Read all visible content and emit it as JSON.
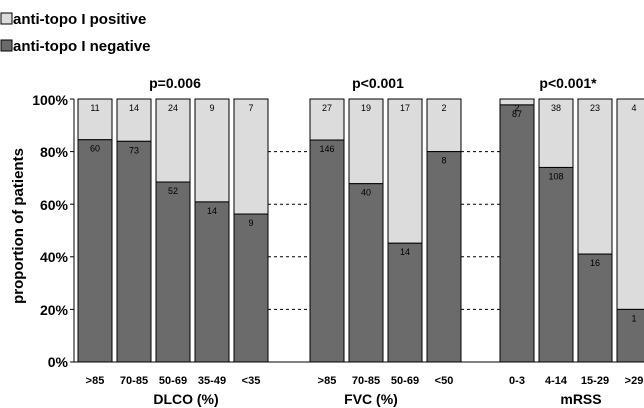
{
  "legend": {
    "positive": "anti-topo I positive",
    "negative": "anti-topo I negative"
  },
  "colors": {
    "positive": "#dcdcdc",
    "negative": "#6b6b6b",
    "outline": "#000000"
  },
  "ylabel": "proportion of patients",
  "yticks": [
    "0%",
    "20%",
    "40%",
    "60%",
    "80%",
    "100%"
  ],
  "chart_data": {
    "type": "bar",
    "stacked": true,
    "ylabel": "proportion of patients",
    "ylim": [
      0,
      100
    ],
    "grid": "dashed horizontal lines between groups",
    "legend_position": "top-left",
    "groups": [
      {
        "name": "DLCO (%)",
        "pvalue": "p=0.006",
        "categories": [
          ">85",
          "70-85",
          "50-69",
          "35-49",
          "<35"
        ],
        "negative": [
          60,
          73,
          52,
          14,
          9
        ],
        "positive": [
          11,
          14,
          24,
          9,
          7
        ]
      },
      {
        "name": "FVC (%)",
        "pvalue": "p<0.001",
        "categories": [
          ">85",
          "70-85",
          "50-69",
          "<50"
        ],
        "negative": [
          146,
          40,
          14,
          8
        ],
        "positive": [
          27,
          19,
          17,
          2
        ]
      },
      {
        "name": "mRSS",
        "pvalue": "p<0.001*",
        "categories": [
          "0-3",
          "4-14",
          "15-29",
          ">29"
        ],
        "negative": [
          87,
          108,
          16,
          1
        ],
        "positive": [
          2,
          38,
          23,
          4
        ]
      }
    ]
  }
}
